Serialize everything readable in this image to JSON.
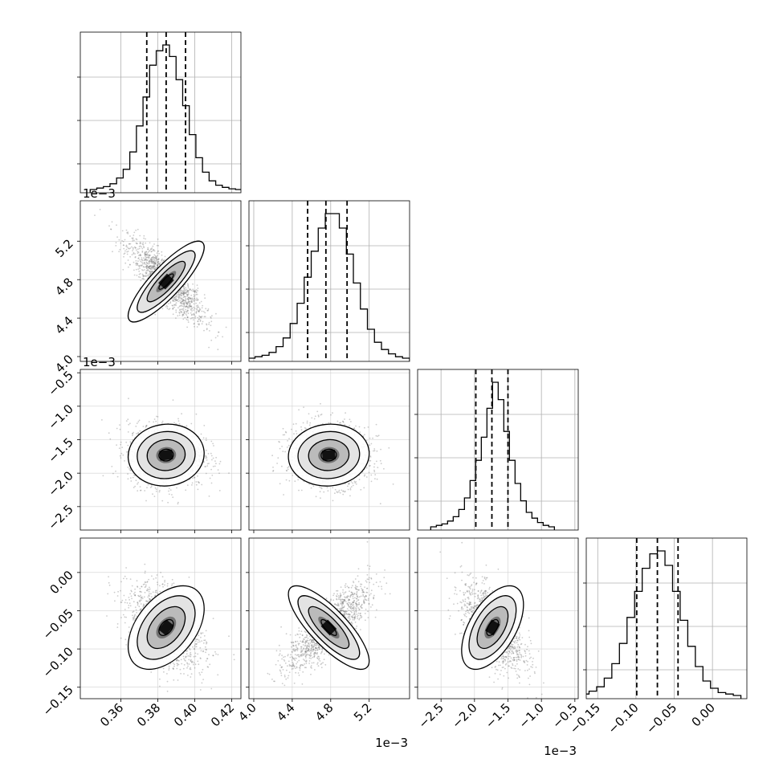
{
  "chart_data": {
    "type": "corner",
    "grid": true,
    "parameters": [
      {
        "range": [
          0.338,
          0.425
        ],
        "ticks": [
          0.36,
          0.38,
          0.4,
          0.42
        ],
        "tick_labels": [
          "0.36",
          "0.38",
          "0.40",
          "0.42"
        ],
        "offset_label": "",
        "mean": 0.3845,
        "sigma": 0.0098,
        "quantiles": [
          0.374,
          0.3845,
          0.395
        ],
        "hist": [
          0,
          1,
          2,
          4,
          8,
          14,
          26,
          44,
          64,
          86,
          96,
          100,
          92,
          76,
          58,
          38,
          22,
          12,
          6,
          3,
          1.5,
          0.5,
          0
        ]
      },
      {
        "range": [
          3.95,
          5.62
        ],
        "ticks": [
          4.0,
          4.4,
          4.8,
          5.2
        ],
        "tick_labels": [
          "4.0",
          "4.4",
          "4.8",
          "5.2"
        ],
        "offset_label": "1e−3",
        "mean": 4.78,
        "sigma": 0.2,
        "quantiles": [
          4.56,
          4.75,
          4.97
        ],
        "hist": [
          0,
          1,
          2,
          4,
          8,
          14,
          24,
          38,
          56,
          74,
          90,
          100,
          100,
          90,
          72,
          52,
          34,
          20,
          11,
          6,
          3,
          1,
          0
        ]
      },
      {
        "range": [
          -2.85,
          -0.45
        ],
        "ticks": [
          -2.5,
          -2.0,
          -1.5,
          -1.0,
          -0.5
        ],
        "tick_labels": [
          "−2.5",
          "−2.0",
          "−1.5",
          "−1.0",
          "−0.5"
        ],
        "offset_label": "1e−3",
        "mean": -1.73,
        "sigma": 0.22,
        "quantiles": [
          -1.98,
          -1.74,
          -1.5
        ],
        "hist": [
          0,
          1,
          2,
          4,
          7,
          12,
          20,
          32,
          46,
          62,
          82,
          100,
          88,
          66,
          46,
          30,
          18,
          10,
          6,
          3,
          1,
          0
        ]
      },
      {
        "range": [
          -0.165,
          0.045
        ],
        "ticks": [
          -0.15,
          -0.1,
          -0.05,
          0.0
        ],
        "tick_labels": [
          "−0.15",
          "−0.10",
          "−0.05",
          "0.00"
        ],
        "offset_label": "",
        "mean": -0.072,
        "sigma": 0.026,
        "quantiles": [
          -0.099,
          -0.072,
          -0.045
        ],
        "hist": [
          0,
          1,
          3,
          6,
          12,
          22,
          36,
          54,
          72,
          88,
          98,
          100,
          90,
          72,
          52,
          34,
          20,
          10,
          5,
          2,
          1,
          0
        ]
      }
    ],
    "correlations": [
      [
        1,
        -0.85,
        -0.05,
        -0.45
      ],
      [
        -0.85,
        1,
        -0.05,
        0.8
      ],
      [
        -0.05,
        -0.05,
        1,
        -0.55
      ],
      [
        -0.45,
        0.8,
        -0.55,
        1
      ]
    ],
    "quantile_levels": [
      0.16,
      0.5,
      0.84
    ]
  }
}
